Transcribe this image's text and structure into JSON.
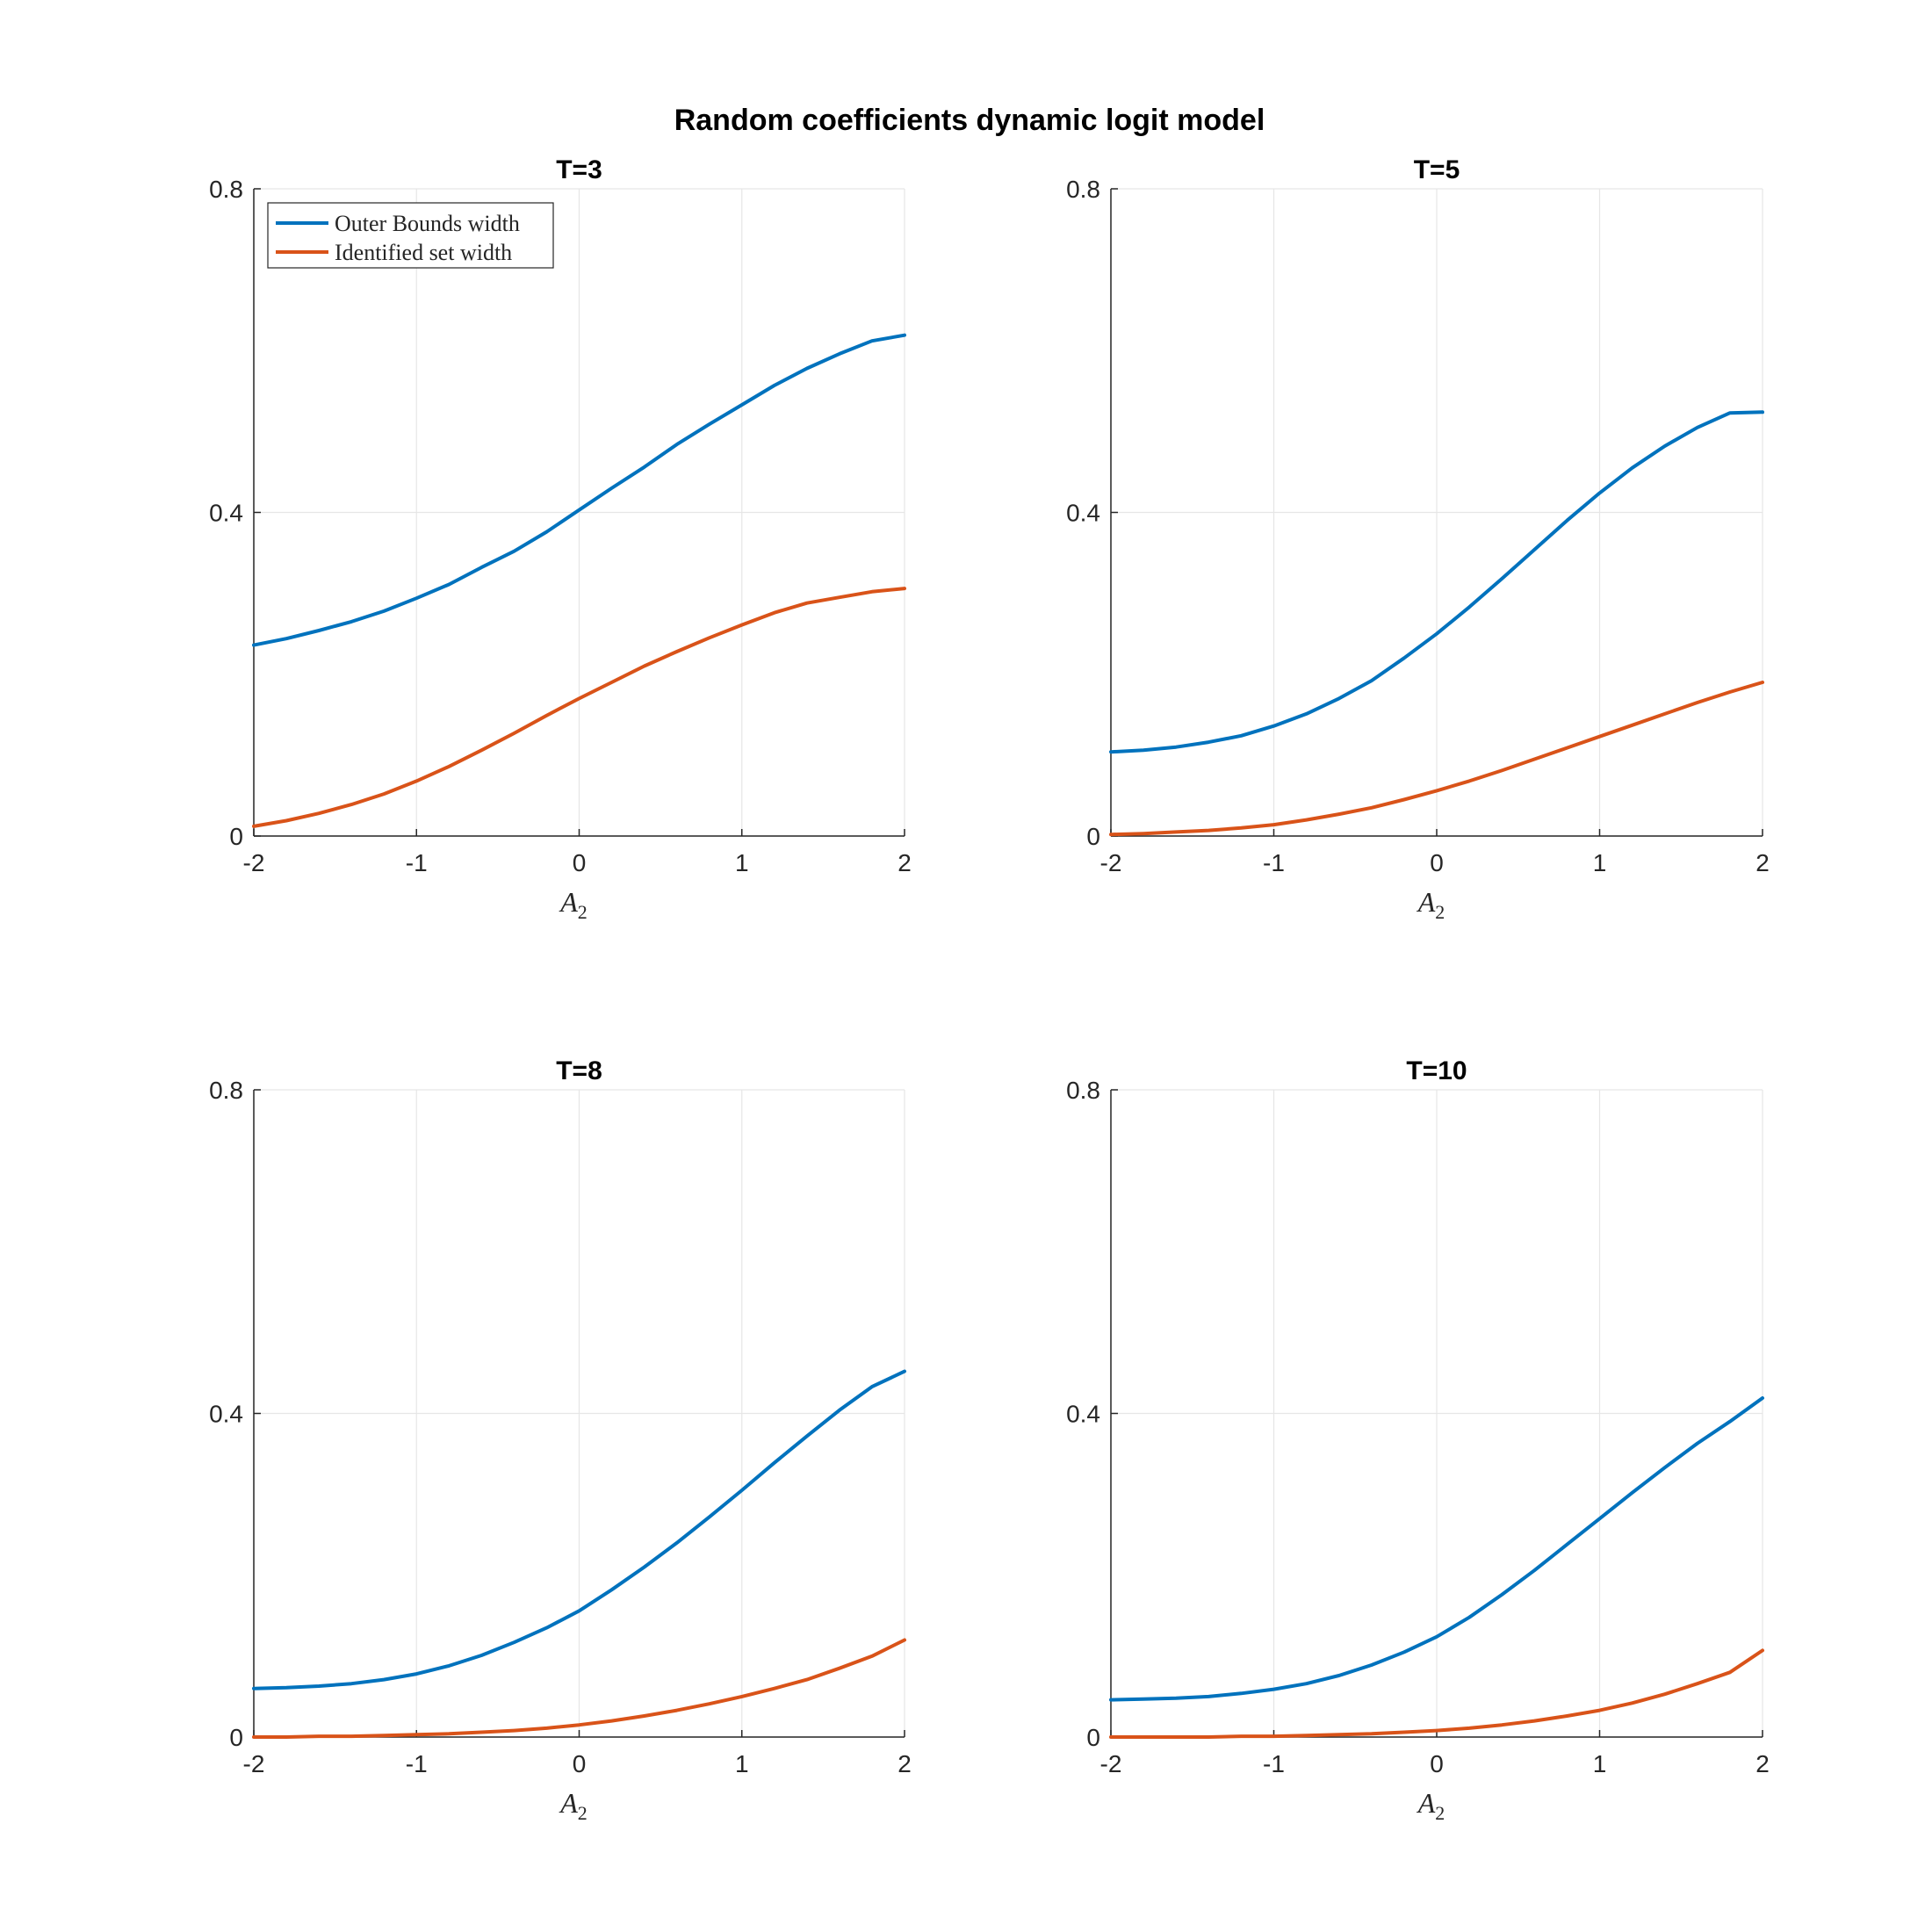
{
  "figure_title": "Random coefficients dynamic logit model",
  "colors": {
    "outer": "#0072BD",
    "identified": "#D95319",
    "grid": "#E6E6E6",
    "axis": "#262626"
  },
  "chart_data": [
    {
      "type": "line",
      "title": "T=3",
      "xlabel": "A",
      "xlabel_sub": "2",
      "xlim": [
        -2,
        2
      ],
      "ylim": [
        0,
        0.8
      ],
      "xticks": [
        -2,
        -1,
        0,
        1,
        2
      ],
      "xtick_labels": [
        "-2",
        "-1",
        "0",
        "1",
        "2"
      ],
      "yticks": [
        0,
        0.4,
        0.8
      ],
      "ytick_labels": [
        "0",
        "0.4",
        "0.8"
      ],
      "grid": true,
      "legend": {
        "position": "top-left",
        "entries": [
          "Outer Bounds width",
          "Identified set width"
        ]
      },
      "x": [
        -2.0,
        -1.8,
        -1.6,
        -1.4,
        -1.2,
        -1.0,
        -0.8,
        -0.6,
        -0.4,
        -0.2,
        0.0,
        0.2,
        0.4,
        0.6,
        0.8,
        1.0,
        1.2,
        1.4,
        1.6,
        1.8,
        2.0
      ],
      "series": [
        {
          "name": "Outer Bounds width",
          "color": "#0072BD",
          "values": [
            0.236,
            0.244,
            0.254,
            0.265,
            0.278,
            0.294,
            0.311,
            0.332,
            0.352,
            0.376,
            0.403,
            0.43,
            0.456,
            0.484,
            0.509,
            0.533,
            0.557,
            0.578,
            0.596,
            0.612,
            0.619
          ]
        },
        {
          "name": "Identified set width",
          "color": "#D95319",
          "values": [
            0.012,
            0.019,
            0.028,
            0.039,
            0.052,
            0.068,
            0.086,
            0.106,
            0.127,
            0.149,
            0.17,
            0.19,
            0.21,
            0.228,
            0.245,
            0.261,
            0.276,
            0.288,
            0.295,
            0.302,
            0.306
          ]
        }
      ]
    },
    {
      "type": "line",
      "title": "T=5",
      "xlabel": "A",
      "xlabel_sub": "2",
      "xlim": [
        -2,
        2
      ],
      "ylim": [
        0,
        0.8
      ],
      "xticks": [
        -2,
        -1,
        0,
        1,
        2
      ],
      "xtick_labels": [
        "-2",
        "-1",
        "0",
        "1",
        "2"
      ],
      "yticks": [
        0,
        0.4,
        0.8
      ],
      "ytick_labels": [
        "0",
        "0.4",
        "0.8"
      ],
      "grid": true,
      "x": [
        -2.0,
        -1.8,
        -1.6,
        -1.4,
        -1.2,
        -1.0,
        -0.8,
        -0.6,
        -0.4,
        -0.2,
        0.0,
        0.2,
        0.4,
        0.6,
        0.8,
        1.0,
        1.2,
        1.4,
        1.6,
        1.8,
        2.0
      ],
      "series": [
        {
          "name": "Outer Bounds width",
          "color": "#0072BD",
          "values": [
            0.104,
            0.106,
            0.11,
            0.116,
            0.124,
            0.136,
            0.151,
            0.17,
            0.192,
            0.22,
            0.25,
            0.283,
            0.318,
            0.354,
            0.39,
            0.424,
            0.455,
            0.482,
            0.505,
            0.523,
            0.524
          ]
        },
        {
          "name": "Identified set width",
          "color": "#D95319",
          "values": [
            0.002,
            0.003,
            0.005,
            0.007,
            0.01,
            0.014,
            0.02,
            0.027,
            0.035,
            0.045,
            0.056,
            0.068,
            0.081,
            0.095,
            0.109,
            0.123,
            0.137,
            0.151,
            0.165,
            0.178,
            0.19
          ]
        }
      ]
    },
    {
      "type": "line",
      "title": "T=8",
      "xlabel": "A",
      "xlabel_sub": "2",
      "xlim": [
        -2,
        2
      ],
      "ylim": [
        0,
        0.8
      ],
      "xticks": [
        -2,
        -1,
        0,
        1,
        2
      ],
      "xtick_labels": [
        "-2",
        "-1",
        "0",
        "1",
        "2"
      ],
      "yticks": [
        0,
        0.4,
        0.8
      ],
      "ytick_labels": [
        "0",
        "0.4",
        "0.8"
      ],
      "grid": true,
      "x": [
        -2.0,
        -1.8,
        -1.6,
        -1.4,
        -1.2,
        -1.0,
        -0.8,
        -0.6,
        -0.4,
        -0.2,
        0.0,
        0.2,
        0.4,
        0.6,
        0.8,
        1.0,
        1.2,
        1.4,
        1.6,
        1.8,
        2.0
      ],
      "series": [
        {
          "name": "Outer Bounds width",
          "color": "#0072BD",
          "values": [
            0.06,
            0.061,
            0.063,
            0.066,
            0.071,
            0.078,
            0.088,
            0.101,
            0.117,
            0.135,
            0.156,
            0.182,
            0.21,
            0.24,
            0.272,
            0.305,
            0.339,
            0.372,
            0.404,
            0.433,
            0.452
          ]
        },
        {
          "name": "Identified set width",
          "color": "#D95319",
          "values": [
            0.0,
            0.0,
            0.001,
            0.001,
            0.002,
            0.003,
            0.004,
            0.006,
            0.008,
            0.011,
            0.015,
            0.02,
            0.026,
            0.033,
            0.041,
            0.05,
            0.06,
            0.071,
            0.085,
            0.1,
            0.12
          ]
        }
      ]
    },
    {
      "type": "line",
      "title": "T=10",
      "xlabel": "A",
      "xlabel_sub": "2",
      "xlim": [
        -2,
        2
      ],
      "ylim": [
        0,
        0.8
      ],
      "xticks": [
        -2,
        -1,
        0,
        1,
        2
      ],
      "xtick_labels": [
        "-2",
        "-1",
        "0",
        "1",
        "2"
      ],
      "yticks": [
        0,
        0.4,
        0.8
      ],
      "ytick_labels": [
        "0",
        "0.4",
        "0.8"
      ],
      "grid": true,
      "x": [
        -2.0,
        -1.8,
        -1.6,
        -1.4,
        -1.2,
        -1.0,
        -0.8,
        -0.6,
        -0.4,
        -0.2,
        0.0,
        0.2,
        0.4,
        0.6,
        0.8,
        1.0,
        1.2,
        1.4,
        1.6,
        1.8,
        2.0
      ],
      "series": [
        {
          "name": "Outer Bounds width",
          "color": "#0072BD",
          "values": [
            0.046,
            0.047,
            0.048,
            0.05,
            0.054,
            0.059,
            0.066,
            0.076,
            0.089,
            0.105,
            0.124,
            0.148,
            0.176,
            0.206,
            0.238,
            0.27,
            0.302,
            0.333,
            0.363,
            0.39,
            0.419
          ]
        },
        {
          "name": "Identified set width",
          "color": "#D95319",
          "values": [
            0.0,
            0.0,
            0.0,
            0.0,
            0.001,
            0.001,
            0.002,
            0.003,
            0.004,
            0.006,
            0.008,
            0.011,
            0.015,
            0.02,
            0.026,
            0.033,
            0.042,
            0.053,
            0.066,
            0.08,
            0.107
          ]
        }
      ]
    }
  ]
}
